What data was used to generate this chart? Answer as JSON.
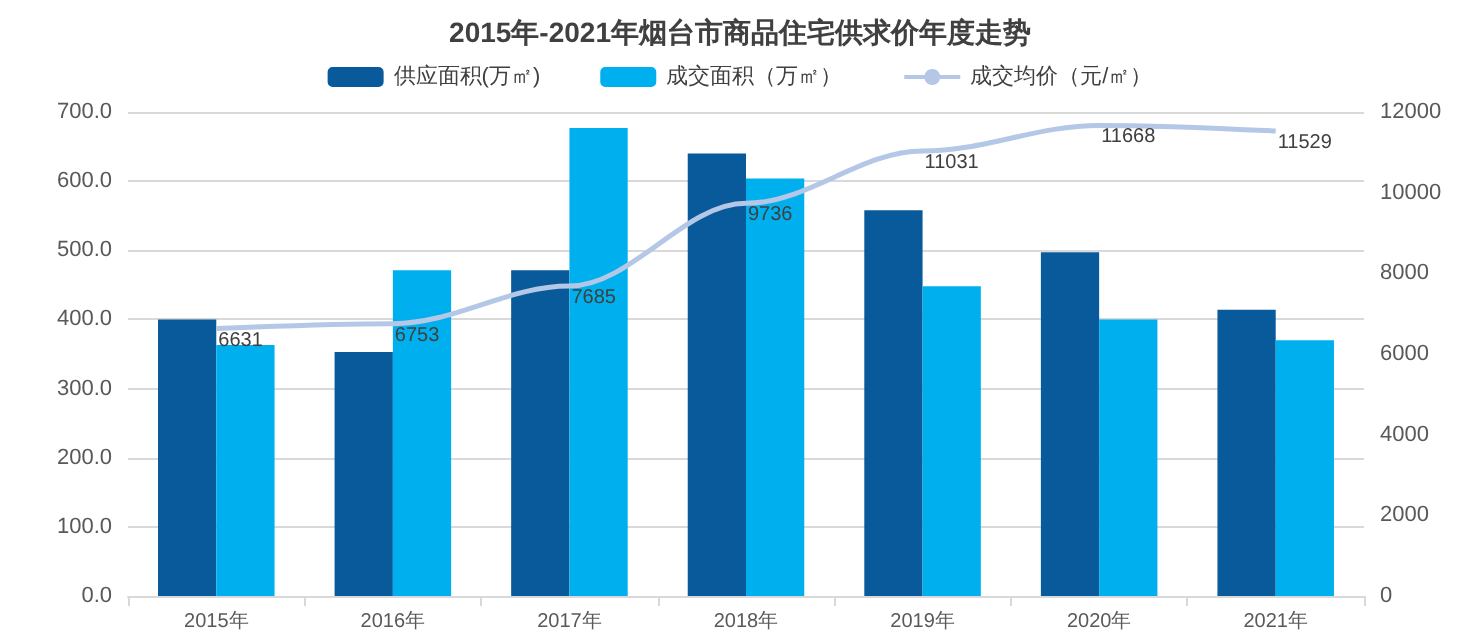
{
  "chart_data": {
    "type": "bar",
    "title": "2015年-2021年烟台市商品住宅供求价年度走势",
    "categories": [
      "2015年",
      "2016年",
      "2017年",
      "2018年",
      "2019年",
      "2020年",
      "2021年"
    ],
    "series": [
      {
        "name": "供应面积(万㎡)",
        "color": "#085a9a",
        "values": [
          400,
          353,
          471,
          640,
          558,
          497,
          414
        ]
      },
      {
        "name": "成交面积（万㎡）",
        "color": "#00b0ee",
        "values": [
          363,
          471,
          677,
          604,
          448,
          400,
          370
        ]
      },
      {
        "name": "成交均价（元/㎡）",
        "type": "line",
        "axis": "y2",
        "color": "#b4c7e7",
        "marker": "none",
        "data_labels": true,
        "values": [
          6631,
          6753,
          7685,
          9736,
          11031,
          11668,
          11529
        ]
      }
    ],
    "ylim": [
      0,
      700
    ],
    "yticks": [
      {
        "value": 0,
        "label": "0.0"
      },
      {
        "value": 100,
        "label": "100.0"
      },
      {
        "value": 200,
        "label": "200.0"
      },
      {
        "value": 300,
        "label": "300.0"
      },
      {
        "value": 400,
        "label": "400.0"
      },
      {
        "value": 500,
        "label": "500.0"
      },
      {
        "value": 600,
        "label": "600.0"
      },
      {
        "value": 700,
        "label": "700.0"
      }
    ],
    "y2lim": [
      0,
      12000
    ],
    "y2ticks": [
      0,
      2000,
      4000,
      6000,
      8000,
      10000,
      12000
    ],
    "grid": "y",
    "legend": "top"
  }
}
